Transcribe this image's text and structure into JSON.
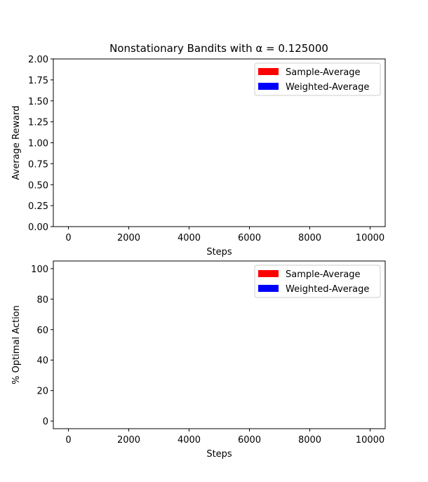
{
  "figure": {
    "title": "Nonstationary Bandits with α = 0.125000"
  },
  "chart_data": [
    {
      "type": "line",
      "xlabel": "Steps",
      "ylabel": "Average Reward",
      "xlim": [
        -500,
        10500
      ],
      "ylim": [
        0,
        2
      ],
      "xticks": [
        0,
        2000,
        4000,
        6000,
        8000,
        10000
      ],
      "xtick_labels": [
        "0",
        "2000",
        "4000",
        "6000",
        "8000",
        "10000"
      ],
      "yticks": [
        0,
        0.25,
        0.5,
        0.75,
        1.0,
        1.25,
        1.5,
        1.75,
        2.0
      ],
      "ytick_labels": [
        "0.00",
        "0.25",
        "0.50",
        "0.75",
        "1.00",
        "1.25",
        "1.50",
        "1.75",
        "2.00"
      ],
      "grid": false,
      "legend_position": "upper-right",
      "series": [
        {
          "name": "Sample-Average",
          "color": "#ff0000",
          "values": []
        },
        {
          "name": "Weighted-Average",
          "color": "#0000ff",
          "values": []
        }
      ]
    },
    {
      "type": "line",
      "xlabel": "Steps",
      "ylabel": "% Optimal Action",
      "xlim": [
        -500,
        10500
      ],
      "ylim": [
        -5,
        105
      ],
      "xticks": [
        0,
        2000,
        4000,
        6000,
        8000,
        10000
      ],
      "xtick_labels": [
        "0",
        "2000",
        "4000",
        "6000",
        "8000",
        "10000"
      ],
      "yticks": [
        0,
        20,
        40,
        60,
        80,
        100
      ],
      "ytick_labels": [
        "0",
        "20",
        "40",
        "60",
        "80",
        "100"
      ],
      "grid": false,
      "legend_position": "upper-right",
      "series": [
        {
          "name": "Sample-Average",
          "color": "#ff0000",
          "values": []
        },
        {
          "name": "Weighted-Average",
          "color": "#0000ff",
          "values": []
        }
      ]
    }
  ]
}
